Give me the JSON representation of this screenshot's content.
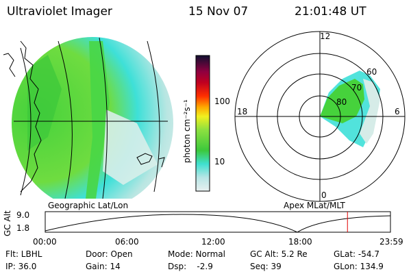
{
  "header": {
    "instrument": "Ultraviolet Imager",
    "date": "15 Nov 07",
    "time": "21:01:48 UT"
  },
  "colorbar": {
    "label": "photon cm⁻²s⁻¹",
    "tick_100": "100",
    "tick_10": "10"
  },
  "polar": {
    "mlt_top": "12",
    "mlt_left": "18",
    "mlt_right": "6",
    "mlt_bottom": "0",
    "lat_60": "60",
    "lat_70": "70",
    "lat_80": "80"
  },
  "timeline": {
    "left_caption": "Geographic Lat/Lon",
    "right_caption": "Apex  MLat/MLT",
    "y_axis_label": "GC Alt",
    "y_top": "9.0",
    "y_bottom": "1.8",
    "times": [
      "00:00",
      "06:00",
      "12:00",
      "18:00",
      "23:59"
    ],
    "current_fraction": 0.8755
  },
  "info": {
    "filter": "Flt: LBHL",
    "ip": "IP: 36.0",
    "door": "Door: Open",
    "gain": "Gain: 14",
    "mode": "Mode: Normal",
    "dsp": "Dsp:    -2.9",
    "gc_alt": "GC Alt: 5.2 Re",
    "seq": "Seq: 39",
    "glat": "GLat: -54.7",
    "glon": "GLon: 134.9"
  },
  "colors": {
    "marker": "#e00000",
    "aurora_green": "#46d23c",
    "aurora_cyan": "#3ee0d8",
    "aurora_pale": "#d6ece8"
  }
}
